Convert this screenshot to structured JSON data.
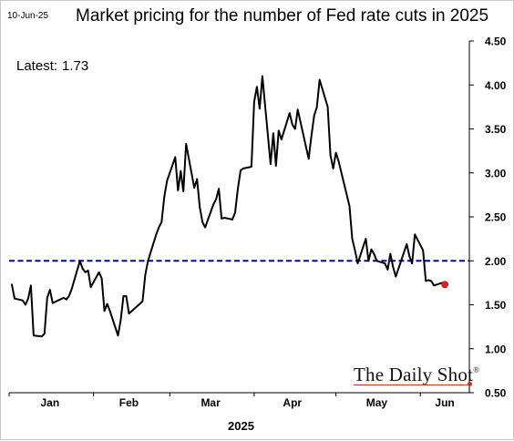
{
  "date_stamp": "10-Jun-25",
  "title": "Market pricing for the number of Fed rate cuts in 2025",
  "latest": {
    "label": "Latest:",
    "value": "1.73"
  },
  "watermark": {
    "text": "The Daily Shot",
    "mark": "®"
  },
  "colors": {
    "line": "#000000",
    "reference_line": "#00009e",
    "latest_marker": "#e0201b",
    "axis": "#000000"
  },
  "chart_data": {
    "type": "line",
    "title": "Market pricing for the number of Fed rate cuts in 2025",
    "xlabel": "2025",
    "ylabel": "",
    "x_ticks": [
      "Jan",
      "Feb",
      "Mar",
      "Apr",
      "May",
      "Jun"
    ],
    "y_ticks": [
      "0.50",
      "1.00",
      "1.50",
      "2.00",
      "2.50",
      "3.00",
      "3.50",
      "4.00",
      "4.50"
    ],
    "ylim": [
      0.5,
      4.5
    ],
    "grid": false,
    "y_axis_side": "right",
    "reference_line": {
      "y": 2.0,
      "style": "dashed"
    },
    "latest_point": {
      "x": "2025-06-10",
      "y": 1.73
    },
    "series": [
      {
        "x": [
          "2025-01-02",
          "2025-01-03",
          "2025-01-06",
          "2025-01-07",
          "2025-01-08",
          "2025-01-09",
          "2025-01-10",
          "2025-01-13",
          "2025-01-14",
          "2025-01-15",
          "2025-01-16",
          "2025-01-17",
          "2025-01-21",
          "2025-01-22",
          "2025-01-23",
          "2025-01-24",
          "2025-01-27",
          "2025-01-28",
          "2025-01-29",
          "2025-01-30",
          "2025-01-31",
          "2025-02-03",
          "2025-02-04",
          "2025-02-05",
          "2025-02-06",
          "2025-02-07",
          "2025-02-10",
          "2025-02-11",
          "2025-02-12",
          "2025-02-13",
          "2025-02-14",
          "2025-02-18",
          "2025-02-19",
          "2025-02-20",
          "2025-02-21",
          "2025-02-24",
          "2025-02-25",
          "2025-02-26",
          "2025-02-27",
          "2025-02-28",
          "2025-03-03",
          "2025-03-04",
          "2025-03-05",
          "2025-03-06",
          "2025-03-07",
          "2025-03-10",
          "2025-03-11",
          "2025-03-12",
          "2025-03-13",
          "2025-03-14",
          "2025-03-17",
          "2025-03-18",
          "2025-03-19",
          "2025-03-20",
          "2025-03-21",
          "2025-03-24",
          "2025-03-25",
          "2025-03-26",
          "2025-03-27",
          "2025-03-28",
          "2025-03-31",
          "2025-04-01",
          "2025-04-02",
          "2025-04-03",
          "2025-04-04",
          "2025-04-07",
          "2025-04-08",
          "2025-04-09",
          "2025-04-10",
          "2025-04-11",
          "2025-04-14",
          "2025-04-15",
          "2025-04-16",
          "2025-04-17",
          "2025-04-21",
          "2025-04-22",
          "2025-04-23",
          "2025-04-24",
          "2025-04-25",
          "2025-04-28",
          "2025-04-29",
          "2025-04-30",
          "2025-05-01",
          "2025-05-02",
          "2025-05-05",
          "2025-05-06",
          "2025-05-07",
          "2025-05-08",
          "2025-05-09",
          "2025-05-12",
          "2025-05-13",
          "2025-05-14",
          "2025-05-15",
          "2025-05-16",
          "2025-05-19",
          "2025-05-20",
          "2025-05-21",
          "2025-05-22",
          "2025-05-23",
          "2025-05-27",
          "2025-05-28",
          "2025-05-29",
          "2025-05-30",
          "2025-06-02",
          "2025-06-03",
          "2025-06-04",
          "2025-06-05",
          "2025-06-06",
          "2025-06-09",
          "2025-06-10"
        ],
        "values": [
          1.73,
          1.57,
          1.55,
          1.5,
          1.57,
          1.72,
          1.15,
          1.14,
          1.17,
          1.58,
          1.67,
          1.52,
          1.58,
          1.56,
          1.6,
          1.68,
          2.0,
          1.91,
          1.87,
          1.89,
          1.7,
          1.87,
          1.8,
          1.43,
          1.51,
          1.43,
          1.15,
          1.33,
          1.6,
          1.6,
          1.4,
          1.51,
          1.54,
          1.84,
          2.0,
          2.3,
          2.38,
          2.44,
          2.73,
          2.91,
          3.18,
          2.8,
          3.02,
          2.79,
          3.33,
          2.83,
          2.93,
          2.61,
          2.44,
          2.38,
          2.64,
          2.7,
          2.82,
          2.48,
          2.49,
          2.47,
          2.55,
          2.82,
          3.03,
          3.05,
          3.07,
          3.81,
          3.98,
          3.73,
          4.1,
          3.1,
          3.45,
          3.08,
          3.48,
          3.38,
          3.68,
          3.55,
          3.5,
          3.72,
          3.16,
          3.42,
          3.65,
          3.75,
          4.06,
          3.75,
          3.2,
          3.05,
          3.23,
          3.13,
          2.75,
          2.62,
          2.25,
          2.12,
          1.97,
          2.25,
          2.0,
          2.13,
          2.08,
          2.0,
          1.97,
          1.9,
          2.08,
          1.93,
          1.82,
          2.19,
          2.05,
          1.97,
          2.3,
          2.12,
          1.77,
          1.78,
          1.77,
          1.72,
          1.75,
          1.73
        ]
      }
    ]
  }
}
